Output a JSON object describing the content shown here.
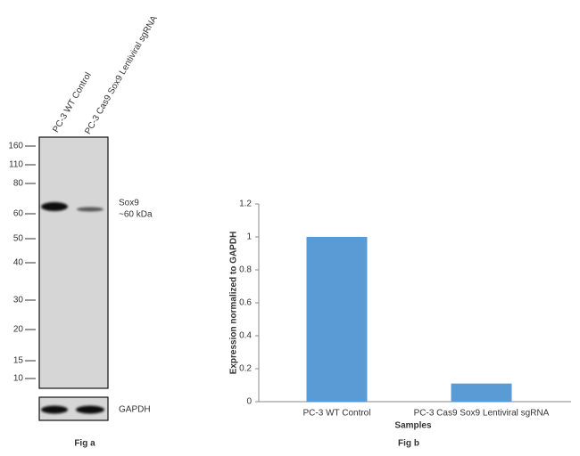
{
  "blot": {
    "lanes": [
      "PC-3 WT Control",
      "PC-3 Cas9 Sox9 Lentiviral sgRNA"
    ],
    "markers": [
      160,
      110,
      80,
      60,
      50,
      40,
      30,
      20,
      15,
      10
    ],
    "band_label": "Sox9",
    "band_size": "~60 kDa",
    "loading_control": "GAPDH",
    "caption": "Fig a"
  },
  "chart_data": {
    "type": "bar",
    "categories": [
      "PC-3 WT Control",
      "PC-3 Cas9 Sox9 Lentiviral sgRNA"
    ],
    "values": [
      1,
      0.11
    ],
    "color": "#5b9bd5",
    "ylim": [
      0,
      1.2
    ],
    "yticks": [
      0,
      0.2,
      0.4,
      0.6,
      0.8,
      1,
      1.2
    ],
    "xlabel": "Samples",
    "ylabel": "Expression normalized to GAPDH",
    "caption": "Fig b"
  }
}
